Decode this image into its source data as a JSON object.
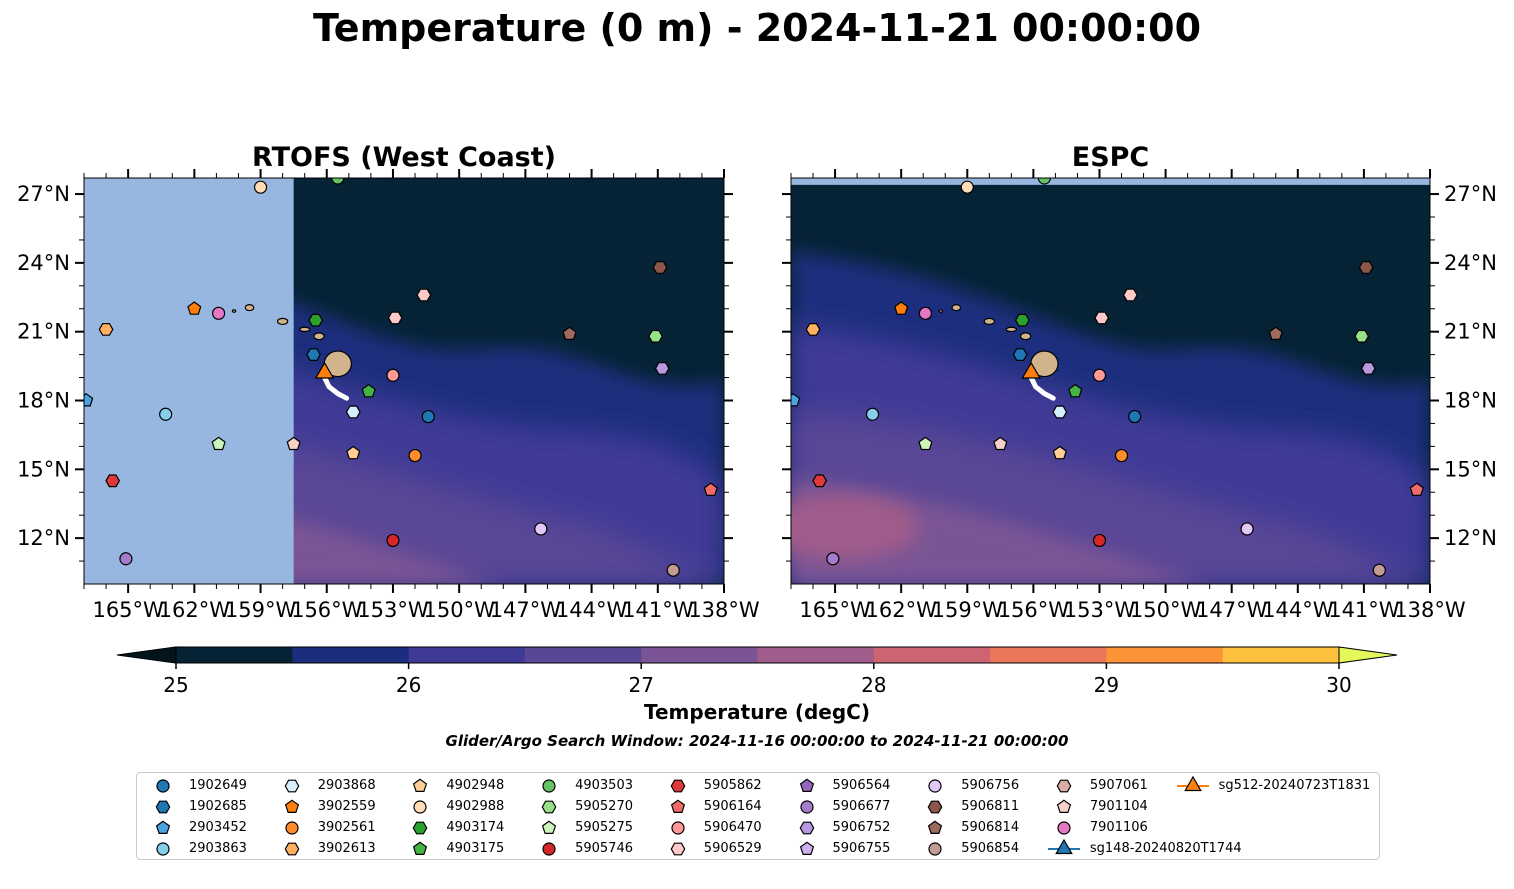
{
  "figure_title": "Temperature (0 m) - 2024-11-21 00:00:00",
  "panels": [
    {
      "title": "RTOFS (West Coast)",
      "masked_west_of": -157.5
    },
    {
      "title": "ESPC",
      "masked_north_of": 27.4
    }
  ],
  "map": {
    "lon_range": [
      -167,
      -138
    ],
    "lat_range": [
      10,
      27.7
    ],
    "lon_ticks": [
      -165,
      -162,
      -159,
      -156,
      -153,
      -150,
      -147,
      -144,
      -141,
      -138
    ],
    "lon_tick_labels": [
      "165°W",
      "162°W",
      "159°W",
      "156°W",
      "153°W",
      "150°W",
      "147°W",
      "144°W",
      "141°W",
      "138°W"
    ],
    "lat_ticks": [
      12,
      15,
      18,
      21,
      24,
      27
    ],
    "lat_tick_labels": [
      "12°N",
      "15°N",
      "18°N",
      "21°N",
      "24°N",
      "27°N"
    ],
    "land_color": "#d2b48c",
    "nodata_color": "#98b7e0"
  },
  "colorbar": {
    "label": "Temperature (degC)",
    "ticks": [
      "25",
      "26",
      "27",
      "28",
      "29",
      "30"
    ],
    "min": 25,
    "max": 30,
    "step": 0.5,
    "colors": [
      "#062335",
      "#1c2d7d",
      "#3f3a96",
      "#5a4696",
      "#7a5494",
      "#a05c8a",
      "#cc6472",
      "#ea7757",
      "#fb9337",
      "#fdc13e"
    ],
    "under_color": "#04141e",
    "over_color": "#e4f75b"
  },
  "search_window": "Glider/Argo Search Window: 2024-11-16 00:00:00 to 2024-11-21 00:00:00",
  "legend": [
    {
      "id": "1902649",
      "marker": "circle",
      "color": "#1f77b4"
    },
    {
      "id": "1902685",
      "marker": "hexagon",
      "color": "#1f77b4"
    },
    {
      "id": "2903452",
      "marker": "pentagon",
      "color": "#4aa3df"
    },
    {
      "id": "2903863",
      "marker": "circle",
      "color": "#87ceeb"
    },
    {
      "id": "2903868",
      "marker": "hexagon",
      "color": "#d6f0fb"
    },
    {
      "id": "3902559",
      "marker": "pentagon",
      "color": "#ff7f0e"
    },
    {
      "id": "3902561",
      "marker": "circle",
      "color": "#ff8c2a"
    },
    {
      "id": "3902613",
      "marker": "hexagon",
      "color": "#ffb061"
    },
    {
      "id": "4902948",
      "marker": "pentagon",
      "color": "#ffcf96"
    },
    {
      "id": "4902988",
      "marker": "circle",
      "color": "#ffdcb5"
    },
    {
      "id": "4903174",
      "marker": "hexagon",
      "color": "#2ca02c"
    },
    {
      "id": "4903175",
      "marker": "pentagon",
      "color": "#44b444"
    },
    {
      "id": "4903503",
      "marker": "circle",
      "color": "#66c266"
    },
    {
      "id": "5905270",
      "marker": "hexagon",
      "color": "#98df8a"
    },
    {
      "id": "5905275",
      "marker": "pentagon",
      "color": "#ccf5bb"
    },
    {
      "id": "5905746",
      "marker": "circle",
      "color": "#d62728"
    },
    {
      "id": "5905862",
      "marker": "hexagon",
      "color": "#e0393b"
    },
    {
      "id": "5906164",
      "marker": "pentagon",
      "color": "#f06a6a"
    },
    {
      "id": "5906470",
      "marker": "circle",
      "color": "#ff9896"
    },
    {
      "id": "5906529",
      "marker": "hexagon",
      "color": "#ffc9c9"
    },
    {
      "id": "5906564",
      "marker": "pentagon",
      "color": "#9467bd"
    },
    {
      "id": "5906677",
      "marker": "circle",
      "color": "#a37dcc"
    },
    {
      "id": "5906752",
      "marker": "hexagon",
      "color": "#b998e0"
    },
    {
      "id": "5906755",
      "marker": "pentagon",
      "color": "#cdb1ee"
    },
    {
      "id": "5906756",
      "marker": "circle",
      "color": "#e2c8f7"
    },
    {
      "id": "5906811",
      "marker": "hexagon",
      "color": "#8c564b"
    },
    {
      "id": "5906814",
      "marker": "pentagon",
      "color": "#9e6a5e"
    },
    {
      "id": "5906854",
      "marker": "circle",
      "color": "#c49c94"
    },
    {
      "id": "5907061",
      "marker": "hexagon",
      "color": "#d9ada5"
    },
    {
      "id": "7901104",
      "marker": "pentagon",
      "color": "#f7d2c9"
    },
    {
      "id": "7901106",
      "marker": "circle",
      "color": "#e377c2"
    },
    {
      "id": "sg148-20240820T1744",
      "marker": "triangle-line",
      "color": "#1f77b4"
    },
    {
      "id": "sg512-20240723T1831",
      "marker": "triangle-line",
      "color": "#ff7f0e"
    }
  ],
  "floats": [
    {
      "id": "2903452",
      "lon": -166.9,
      "lat": 18.0
    },
    {
      "id": "3902613",
      "lon": -166.0,
      "lat": 21.1
    },
    {
      "id": "3902559",
      "lon": -162.0,
      "lat": 22.0
    },
    {
      "id": "7901106",
      "lon": -160.9,
      "lat": 21.8
    },
    {
      "id": "4902988",
      "lon": -159.0,
      "lat": 27.3
    },
    {
      "id": "4903503",
      "lon": -155.5,
      "lat": 27.7
    },
    {
      "id": "4903174",
      "lon": -156.5,
      "lat": 21.5
    },
    {
      "id": "1902685",
      "lon": -156.6,
      "lat": 20.0
    },
    {
      "id": "5906529",
      "lon": -151.6,
      "lat": 22.6
    },
    {
      "id": "5906529",
      "lon": -152.9,
      "lat": 21.6
    },
    {
      "id": "5906811",
      "lon": -140.9,
      "lat": 23.8
    },
    {
      "id": "5906814",
      "lon": -145.0,
      "lat": 20.9
    },
    {
      "id": "5905270",
      "lon": -141.1,
      "lat": 20.8
    },
    {
      "id": "5906752",
      "lon": -140.8,
      "lat": 19.4
    },
    {
      "id": "5906470",
      "lon": -153.0,
      "lat": 19.1
    },
    {
      "id": "4903175",
      "lon": -154.1,
      "lat": 18.4
    },
    {
      "id": "2903868",
      "lon": -154.8,
      "lat": 17.5
    },
    {
      "id": "1902649",
      "lon": -151.4,
      "lat": 17.3
    },
    {
      "id": "2903863",
      "lon": -163.3,
      "lat": 17.4
    },
    {
      "id": "5905275",
      "lon": -160.9,
      "lat": 16.1
    },
    {
      "id": "7901104",
      "lon": -157.5,
      "lat": 16.1
    },
    {
      "id": "4902948",
      "lon": -154.8,
      "lat": 15.7
    },
    {
      "id": "3902561",
      "lon": -152.0,
      "lat": 15.6
    },
    {
      "id": "5905862",
      "lon": -165.7,
      "lat": 14.5
    },
    {
      "id": "5906164",
      "lon": -138.6,
      "lat": 14.1
    },
    {
      "id": "5906756",
      "lon": -146.3,
      "lat": 12.4
    },
    {
      "id": "5905746",
      "lon": -153.0,
      "lat": 11.9
    },
    {
      "id": "5906677",
      "lon": -165.1,
      "lat": 11.1
    },
    {
      "id": "5906854",
      "lon": -140.3,
      "lat": 10.6
    }
  ],
  "gliders": [
    {
      "id": "sg512-20240723T1831",
      "lon": -156.1,
      "lat": 19.2,
      "track": [
        [
          -156.1,
          19.0
        ],
        [
          -155.9,
          18.6
        ],
        [
          -155.5,
          18.3
        ],
        [
          -155.1,
          18.1
        ]
      ]
    }
  ]
}
